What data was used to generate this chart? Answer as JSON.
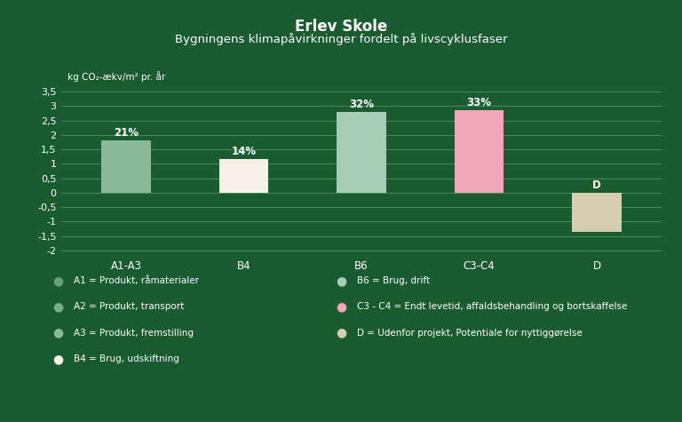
{
  "title_bold": "Erlev Skole",
  "title_sub": "Bygningens klimapåvirkninger fordelt på livscyklusfaser",
  "ylabel": "kg CO₂-ækv/m² pr. år",
  "background_color": "#1a5c30",
  "plot_bg_color": "#1a5c30",
  "grid_color": "#4a8a5c",
  "text_color": "#ffffff",
  "categories": [
    "A1-A3",
    "B4",
    "B6",
    "C3-C4",
    "D"
  ],
  "values": [
    1.8,
    1.15,
    2.8,
    2.85,
    -1.35
  ],
  "bar_colors": [
    "#8ab89a",
    "#f5f0e8",
    "#a8cdb5",
    "#f0a8b8",
    "#d6cdb0"
  ],
  "bar_labels": [
    "21%",
    "14%",
    "32%",
    "33%",
    "D"
  ],
  "label_above": [
    true,
    true,
    true,
    true,
    false
  ],
  "ylim": [
    -2.1,
    3.75
  ],
  "yticks": [
    -2.0,
    -1.5,
    -1.0,
    -0.5,
    0.0,
    0.5,
    1.0,
    1.5,
    2.0,
    2.5,
    3.0,
    3.5
  ],
  "ytick_labels": [
    "-2",
    "-1,5",
    "-1",
    "-0,5",
    "0",
    "0,5",
    "1",
    "1,5",
    "2",
    "2,5",
    "3",
    "3,5"
  ],
  "legend_left": [
    {
      "label": "A1 = Produkt, råmaterialer",
      "color": "#6b9e7a"
    },
    {
      "label": "A2 = Produkt, transport",
      "color": "#7aae8a"
    },
    {
      "label": "A3 = Produkt, fremstilling",
      "color": "#8ab89a"
    },
    {
      "label": "B4 = Brug, udskiftning",
      "color": "#f5f0e8"
    }
  ],
  "legend_right": [
    {
      "label": "B6 = Brug, drift",
      "color": "#a8cdb5"
    },
    {
      "label": "C3 - C4 = Endt levetid, affaldsbehandling og bortskaffelse",
      "color": "#f0a8b8"
    },
    {
      "label": "D = Udenfor projekt, Potentiale for nyttiggørelse",
      "color": "#d6cdb0"
    }
  ]
}
